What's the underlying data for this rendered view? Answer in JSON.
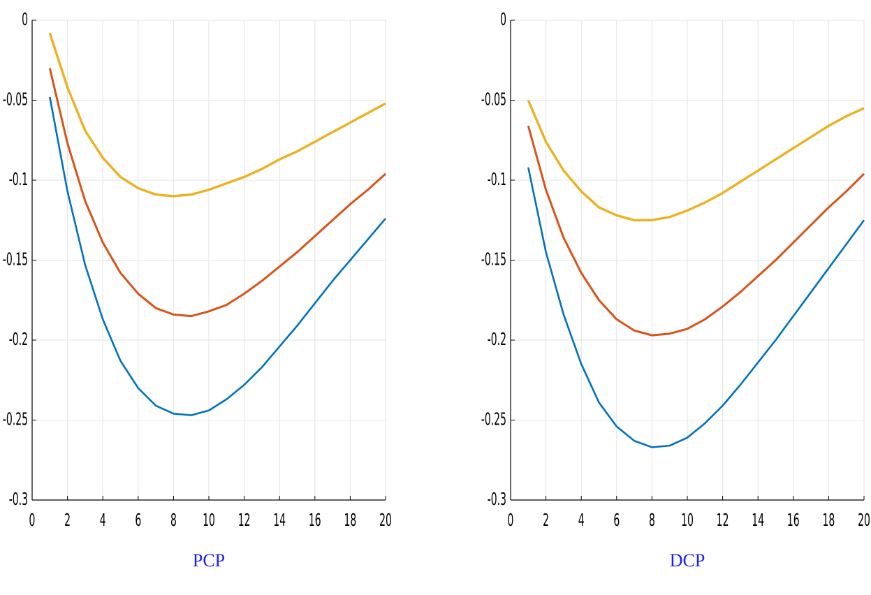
{
  "chart_data": [
    {
      "type": "line",
      "caption": "PCP",
      "x": [
        1,
        2,
        3,
        4,
        5,
        6,
        7,
        8,
        9,
        10,
        11,
        12,
        13,
        14,
        15,
        16,
        17,
        18,
        19,
        20
      ],
      "series": [
        {
          "color": "#0072bd",
          "values": [
            -0.048,
            -0.107,
            -0.153,
            -0.187,
            -0.213,
            -0.23,
            -0.241,
            -0.246,
            -0.247,
            -0.244,
            -0.237,
            -0.228,
            -0.217,
            -0.204,
            -0.191,
            -0.177,
            -0.163,
            -0.15,
            -0.137,
            -0.124
          ]
        },
        {
          "color": "#d95319",
          "values": [
            -0.03,
            -0.077,
            -0.113,
            -0.139,
            -0.158,
            -0.171,
            -0.18,
            -0.184,
            -0.185,
            -0.182,
            -0.178,
            -0.171,
            -0.163,
            -0.154,
            -0.145,
            -0.135,
            -0.125,
            -0.115,
            -0.106,
            -0.096
          ]
        },
        {
          "color": "#edb120",
          "values": [
            -0.008,
            -0.042,
            -0.069,
            -0.086,
            -0.098,
            -0.105,
            -0.109,
            -0.11,
            -0.109,
            -0.106,
            -0.102,
            -0.098,
            -0.093,
            -0.087,
            -0.082,
            -0.076,
            -0.07,
            -0.064,
            -0.058,
            -0.052
          ]
        }
      ],
      "xlim": [
        0,
        20
      ],
      "xticks": [
        0,
        2,
        4,
        6,
        8,
        10,
        12,
        14,
        16,
        18,
        20
      ],
      "ylim": [
        -0.3,
        0
      ],
      "yticks": [
        -0.3,
        -0.25,
        -0.2,
        -0.15,
        -0.1,
        -0.05,
        0
      ],
      "grid": true
    },
    {
      "type": "line",
      "caption": "DCP",
      "x": [
        1,
        2,
        3,
        4,
        5,
        6,
        7,
        8,
        9,
        10,
        11,
        12,
        13,
        14,
        15,
        16,
        17,
        18,
        19,
        20
      ],
      "series": [
        {
          "color": "#0072bd",
          "values": [
            -0.092,
            -0.145,
            -0.184,
            -0.215,
            -0.239,
            -0.254,
            -0.263,
            -0.267,
            -0.266,
            -0.261,
            -0.252,
            -0.241,
            -0.228,
            -0.214,
            -0.2,
            -0.185,
            -0.17,
            -0.155,
            -0.14,
            -0.125
          ]
        },
        {
          "color": "#d95319",
          "values": [
            -0.066,
            -0.106,
            -0.136,
            -0.158,
            -0.175,
            -0.187,
            -0.194,
            -0.197,
            -0.196,
            -0.193,
            -0.187,
            -0.179,
            -0.17,
            -0.16,
            -0.15,
            -0.139,
            -0.128,
            -0.117,
            -0.107,
            -0.096
          ]
        },
        {
          "color": "#edb120",
          "values": [
            -0.05,
            -0.076,
            -0.094,
            -0.107,
            -0.117,
            -0.122,
            -0.125,
            -0.125,
            -0.123,
            -0.119,
            -0.114,
            -0.108,
            -0.101,
            -0.094,
            -0.087,
            -0.08,
            -0.073,
            -0.066,
            -0.06,
            -0.055
          ]
        }
      ],
      "xlim": [
        0,
        20
      ],
      "xticks": [
        0,
        2,
        4,
        6,
        8,
        10,
        12,
        14,
        16,
        18,
        20
      ],
      "ylim": [
        -0.3,
        0
      ],
      "yticks": [
        -0.3,
        -0.25,
        -0.2,
        -0.15,
        -0.1,
        -0.05,
        0
      ],
      "grid": true
    }
  ]
}
